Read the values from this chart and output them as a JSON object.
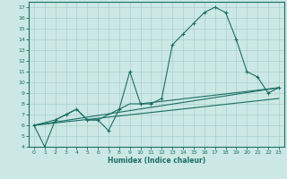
{
  "xlabel": "Humidex (Indice chaleur)",
  "bg_color": "#cce8e4",
  "grid_color": "#aad0cc",
  "line_color": "#1a6e64",
  "xlim": [
    -0.5,
    23.5
  ],
  "ylim": [
    4,
    17.5
  ],
  "xticks": [
    0,
    1,
    2,
    3,
    4,
    5,
    6,
    7,
    8,
    9,
    10,
    11,
    12,
    13,
    14,
    15,
    16,
    17,
    18,
    19,
    20,
    21,
    22,
    23
  ],
  "yticks": [
    4,
    5,
    6,
    7,
    8,
    9,
    10,
    11,
    12,
    13,
    14,
    15,
    16,
    17
  ],
  "main_series": [
    [
      0,
      6.0
    ],
    [
      1,
      4.0
    ],
    [
      2,
      6.5
    ],
    [
      3,
      7.0
    ],
    [
      4,
      7.5
    ],
    [
      5,
      6.5
    ],
    [
      6,
      6.5
    ],
    [
      7,
      5.5
    ],
    [
      8,
      7.5
    ],
    [
      9,
      11.0
    ],
    [
      10,
      8.0
    ],
    [
      11,
      8.0
    ],
    [
      12,
      8.5
    ],
    [
      13,
      13.5
    ],
    [
      14,
      14.5
    ],
    [
      15,
      15.5
    ],
    [
      16,
      16.5
    ],
    [
      17,
      17.0
    ],
    [
      18,
      16.5
    ],
    [
      19,
      14.0
    ],
    [
      20,
      11.0
    ],
    [
      21,
      10.5
    ],
    [
      22,
      9.0
    ],
    [
      23,
      9.5
    ]
  ],
  "line_straight1": [
    [
      0,
      6.0
    ],
    [
      23,
      9.5
    ]
  ],
  "line_straight2": [
    [
      0,
      6.0
    ],
    [
      23,
      8.5
    ]
  ],
  "line_mixed": [
    [
      0,
      6.0
    ],
    [
      2,
      6.5
    ],
    [
      3,
      7.0
    ],
    [
      4,
      7.5
    ],
    [
      5,
      6.5
    ],
    [
      6,
      6.5
    ],
    [
      7,
      7.0
    ],
    [
      8,
      7.5
    ],
    [
      9,
      8.0
    ],
    [
      10,
      8.0
    ],
    [
      23,
      9.5
    ]
  ]
}
